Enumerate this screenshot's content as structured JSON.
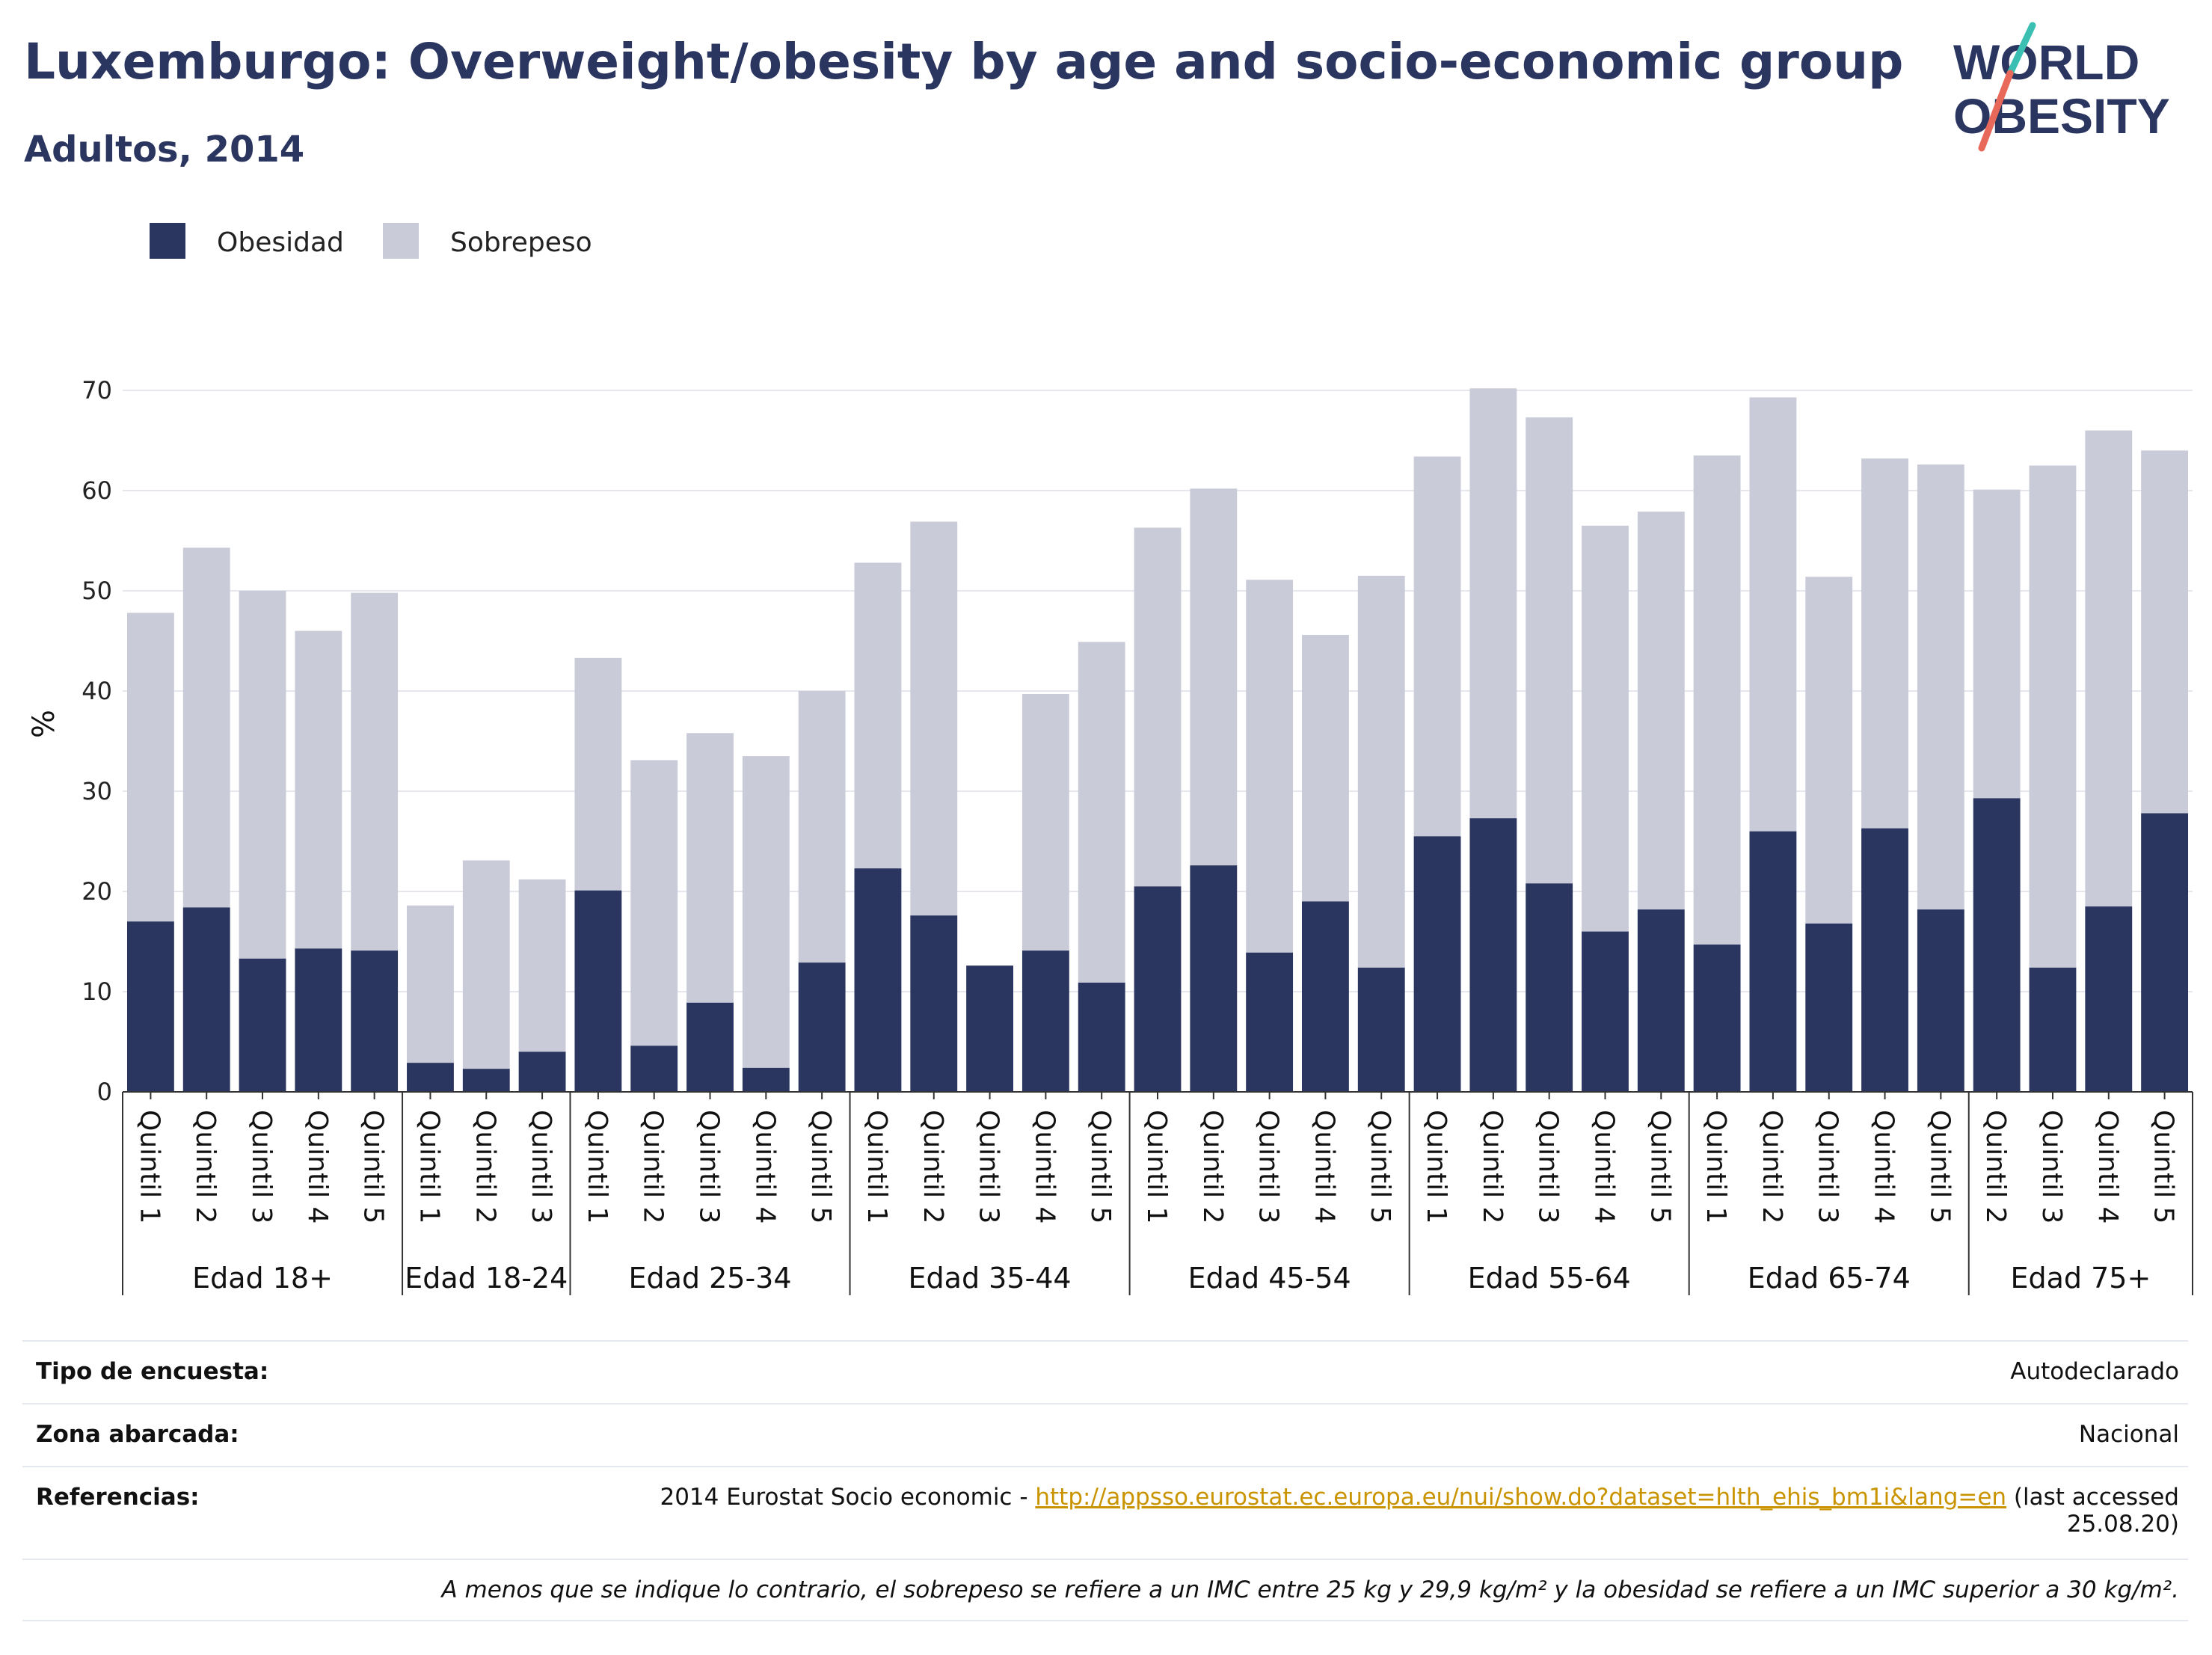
{
  "header": {
    "title": "Luxemburgo: Overweight/obesity by age and socio-economic group",
    "subtitle": "Adultos, 2014"
  },
  "logo": {
    "line1": "WORLD",
    "line2": "OBESITY"
  },
  "colors": {
    "obesity": "#2a3560",
    "overweight": "#c9cbd8",
    "title": "#2a3560",
    "link": "#c99400"
  },
  "chart_data": {
    "type": "bar",
    "stacked": true,
    "ylabel": "%",
    "ylim": [
      0,
      70
    ],
    "yticks": [
      0,
      10,
      20,
      30,
      40,
      50,
      60,
      70
    ],
    "grid": true,
    "legend": {
      "placement": "top-left",
      "entries": [
        "Obesidad",
        "Sobrepeso"
      ]
    },
    "groups": [
      {
        "label": "Edad 18+",
        "categories": [
          "Quintil 1",
          "Quintil 2",
          "Quintil 3",
          "Quintil 4",
          "Quintil 5"
        ],
        "obesidad": [
          17.0,
          18.4,
          13.3,
          14.3,
          14.1
        ],
        "total": [
          47.8,
          54.3,
          50.0,
          46.0,
          49.8
        ]
      },
      {
        "label": "Edad 18-24",
        "categories": [
          "Quintil 1",
          "Quintil 2",
          "Quintil 3"
        ],
        "obesidad": [
          2.9,
          2.3,
          4.0
        ],
        "total": [
          18.6,
          23.1,
          21.2
        ]
      },
      {
        "label": "Edad 25-34",
        "categories": [
          "Quintil 1",
          "Quintil 2",
          "Quintil 3",
          "Quintil 4",
          "Quintil 5"
        ],
        "obesidad": [
          20.1,
          4.6,
          8.9,
          2.4,
          12.9
        ],
        "total": [
          43.3,
          33.1,
          35.8,
          33.5,
          40.0
        ]
      },
      {
        "label": "Edad 35-44",
        "categories": [
          "Quintil 1",
          "Quintil 2",
          "Quintil 3",
          "Quintil 4",
          "Quintil 5"
        ],
        "obesidad": [
          22.3,
          17.6,
          12.6,
          14.1,
          10.9
        ],
        "total": [
          52.8,
          56.9,
          12.6,
          39.7,
          44.9
        ]
      },
      {
        "label": "Edad 45-54",
        "categories": [
          "Quintil 1",
          "Quintil 2",
          "Quintil 3",
          "Quintil 4",
          "Quintil 5"
        ],
        "obesidad": [
          20.5,
          22.6,
          13.9,
          19.0,
          12.4
        ],
        "total": [
          56.3,
          60.2,
          51.1,
          45.6,
          51.5
        ]
      },
      {
        "label": "Edad 55-64",
        "categories": [
          "Quintil 1",
          "Quintil 2",
          "Quintil 3",
          "Quintil 4",
          "Quintil 5"
        ],
        "obesidad": [
          25.5,
          27.3,
          20.8,
          16.0,
          18.2
        ],
        "total": [
          63.4,
          70.2,
          67.3,
          56.5,
          57.9
        ]
      },
      {
        "label": "Edad 65-74",
        "categories": [
          "Quintil 1",
          "Quintil 2",
          "Quintil 3",
          "Quintil 4",
          "Quintil 5"
        ],
        "obesidad": [
          14.7,
          26.0,
          16.8,
          26.3,
          18.2
        ],
        "total": [
          63.5,
          69.3,
          51.4,
          63.2,
          62.6
        ]
      },
      {
        "label": "Edad 75+",
        "categories": [
          "Quintil 2",
          "Quintil 3",
          "Quintil 4",
          "Quintil 5"
        ],
        "obesidad": [
          29.3,
          12.4,
          18.5,
          27.8
        ],
        "total": [
          60.1,
          62.5,
          66.0,
          64.0
        ]
      }
    ]
  },
  "footer": {
    "survey_label": "Tipo de encuesta:",
    "survey_value": "Autodeclarado",
    "area_label": "Zona abarcada:",
    "area_value": "Nacional",
    "refs_label": "Referencias:",
    "refs_prefix": "2014 Eurostat Socio economic - ",
    "refs_link": "http://appsso.eurostat.ec.europa.eu/nui/show.do?dataset=hlth_ehis_bm1i&lang=en",
    "refs_suffix_1": " (last accessed",
    "refs_suffix_2": "25.08.20)",
    "note": "A menos que se indique lo contrario, el sobrepeso se refiere a un IMC entre 25 kg y 29,9 kg/m² y la obesidad se refiere a un IMC superior a 30 kg/m²."
  }
}
